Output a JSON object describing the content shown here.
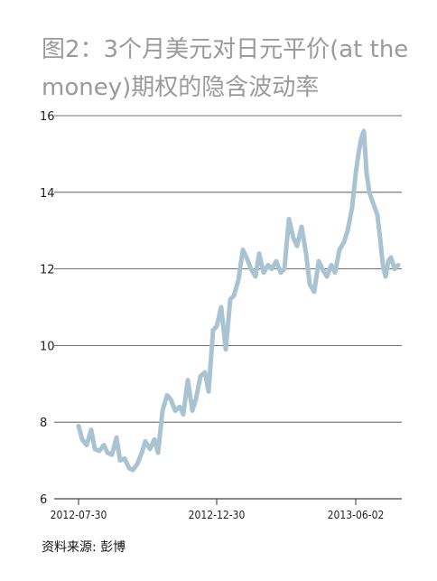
{
  "header": {
    "title": "图2：3个月美元对日元平价(at the money)期权的隐含波动率"
  },
  "footer": {
    "source": "资料来源: 彭博"
  },
  "colors": {
    "series": "#a9c3d3",
    "grid": "#444444",
    "title": "#9a9a9a"
  },
  "chart_data": {
    "type": "line",
    "title": "图2：3个月美元对日元平价(at the money)期权的隐含波动率",
    "xlabel": "",
    "ylabel": "",
    "ylim": [
      6,
      16
    ],
    "yticks": [
      6,
      8,
      10,
      12,
      14,
      16
    ],
    "xtick_labels": [
      "2012-07-30",
      "2012-12-30",
      "2013-06-02"
    ],
    "grid": "horizontal",
    "series": [
      {
        "name": "",
        "x": [
          "2012-07-30",
          "2012-08-03",
          "2012-08-08",
          "2012-08-13",
          "2012-08-17",
          "2012-08-22",
          "2012-08-27",
          "2012-08-31",
          "2012-09-05",
          "2012-09-10",
          "2012-09-14",
          "2012-09-19",
          "2012-09-24",
          "2012-09-28",
          "2012-10-03",
          "2012-10-08",
          "2012-10-12",
          "2012-10-17",
          "2012-10-22",
          "2012-10-26",
          "2012-10-31",
          "2012-11-05",
          "2012-11-09",
          "2012-11-14",
          "2012-11-19",
          "2012-11-23",
          "2012-11-28",
          "2012-12-03",
          "2012-12-07",
          "2012-12-12",
          "2012-12-17",
          "2012-12-21",
          "2012-12-26",
          "2012-12-30",
          "2013-01-04",
          "2013-01-09",
          "2013-01-14",
          "2013-01-18",
          "2013-01-23",
          "2013-01-28",
          "2013-02-01",
          "2013-02-06",
          "2013-02-11",
          "2013-02-15",
          "2013-02-20",
          "2013-02-25",
          "2013-03-01",
          "2013-03-06",
          "2013-03-11",
          "2013-03-15",
          "2013-03-20",
          "2013-03-25",
          "2013-03-29",
          "2013-04-03",
          "2013-04-08",
          "2013-04-12",
          "2013-04-17",
          "2013-04-22",
          "2013-04-26",
          "2013-05-01",
          "2013-05-06",
          "2013-05-10",
          "2013-05-15",
          "2013-05-20",
          "2013-05-24",
          "2013-05-29",
          "2013-06-02",
          "2013-06-05",
          "2013-06-08",
          "2013-06-11",
          "2013-06-14",
          "2013-06-17",
          "2013-06-20",
          "2013-06-23",
          "2013-06-26",
          "2013-06-29",
          "2013-07-02",
          "2013-07-05",
          "2013-07-08",
          "2013-07-11",
          "2013-07-15",
          "2013-07-19"
        ],
        "values": [
          7.9,
          7.55,
          7.4,
          7.8,
          7.3,
          7.25,
          7.4,
          7.2,
          7.15,
          7.6,
          7.0,
          7.05,
          6.8,
          6.75,
          6.9,
          7.2,
          7.5,
          7.3,
          7.55,
          7.2,
          8.3,
          8.7,
          8.6,
          8.3,
          8.4,
          8.2,
          9.1,
          8.3,
          8.6,
          9.2,
          9.3,
          8.8,
          10.4,
          10.5,
          11.0,
          9.9,
          11.2,
          11.3,
          11.7,
          12.5,
          12.3,
          12.0,
          11.8,
          12.4,
          11.9,
          12.1,
          12.0,
          12.2,
          11.9,
          12.0,
          13.3,
          12.8,
          12.6,
          13.1,
          12.4,
          11.6,
          11.4,
          12.2,
          12.0,
          11.8,
          12.1,
          11.9,
          12.5,
          12.7,
          13.0,
          13.6,
          14.5,
          15.0,
          15.4,
          15.6,
          14.5,
          14.0,
          13.8,
          13.6,
          13.4,
          12.8,
          12.1,
          11.8,
          12.2,
          12.3,
          12.0,
          12.1
        ]
      }
    ]
  }
}
